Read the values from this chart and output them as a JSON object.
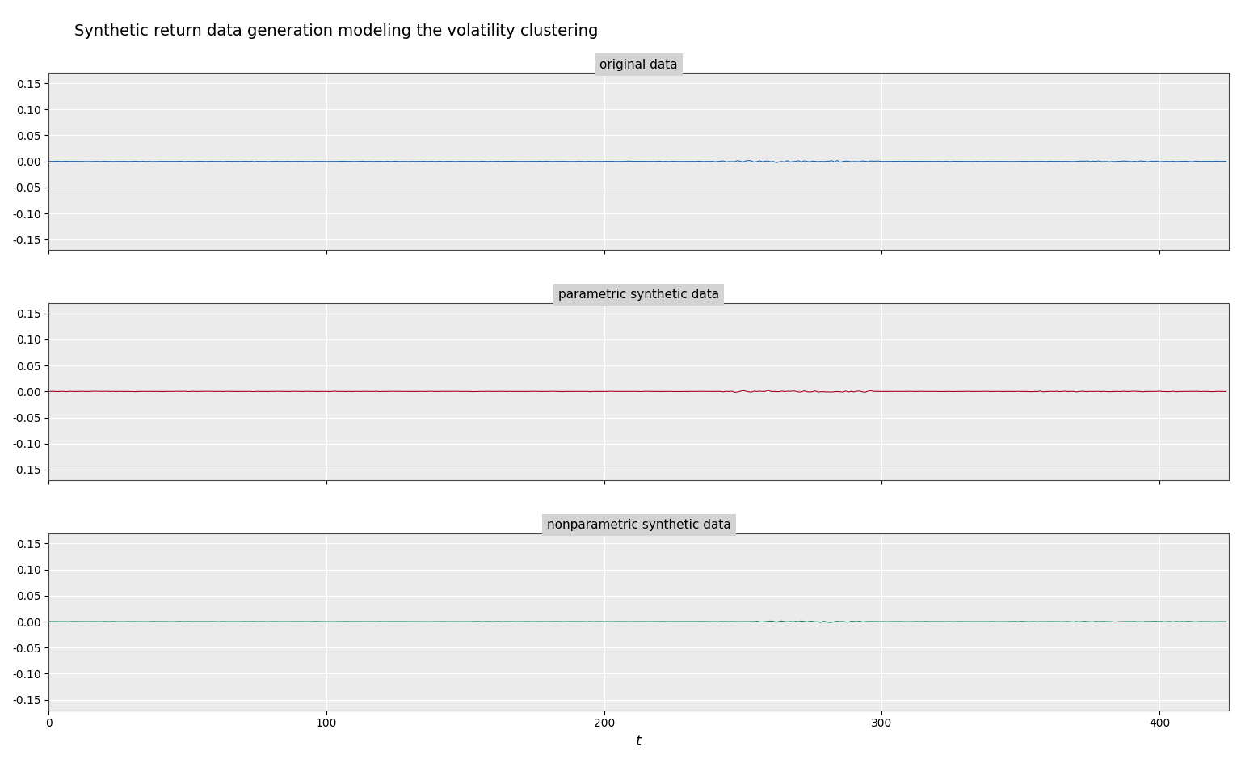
{
  "title": "Synthetic return data generation modeling the volatility clustering",
  "subplot_titles": [
    "original data",
    "parametric synthetic data",
    "nonparametric synthetic data"
  ],
  "xlabel": "t",
  "ylim": [
    -0.17,
    0.17
  ],
  "yticks": [
    -0.15,
    -0.1,
    -0.05,
    0.0,
    0.05,
    0.1,
    0.15
  ],
  "xticks": [
    0,
    100,
    200,
    300,
    400
  ],
  "xlim": [
    0,
    425
  ],
  "n_points": 425,
  "colors": [
    "#2166ac",
    "#a50026",
    "#1a7f5a"
  ],
  "line_width": 0.8,
  "background_color": "#d3d3d3",
  "plot_bg_color": "#ebebeb",
  "grid_color": "#ffffff",
  "title_fontsize": 14,
  "subtitle_fontsize": 11,
  "tick_fontsize": 10,
  "xlabel_fontsize": 13,
  "seed_original": 42,
  "seed_parametric": 123,
  "seed_nonparametric": 7
}
